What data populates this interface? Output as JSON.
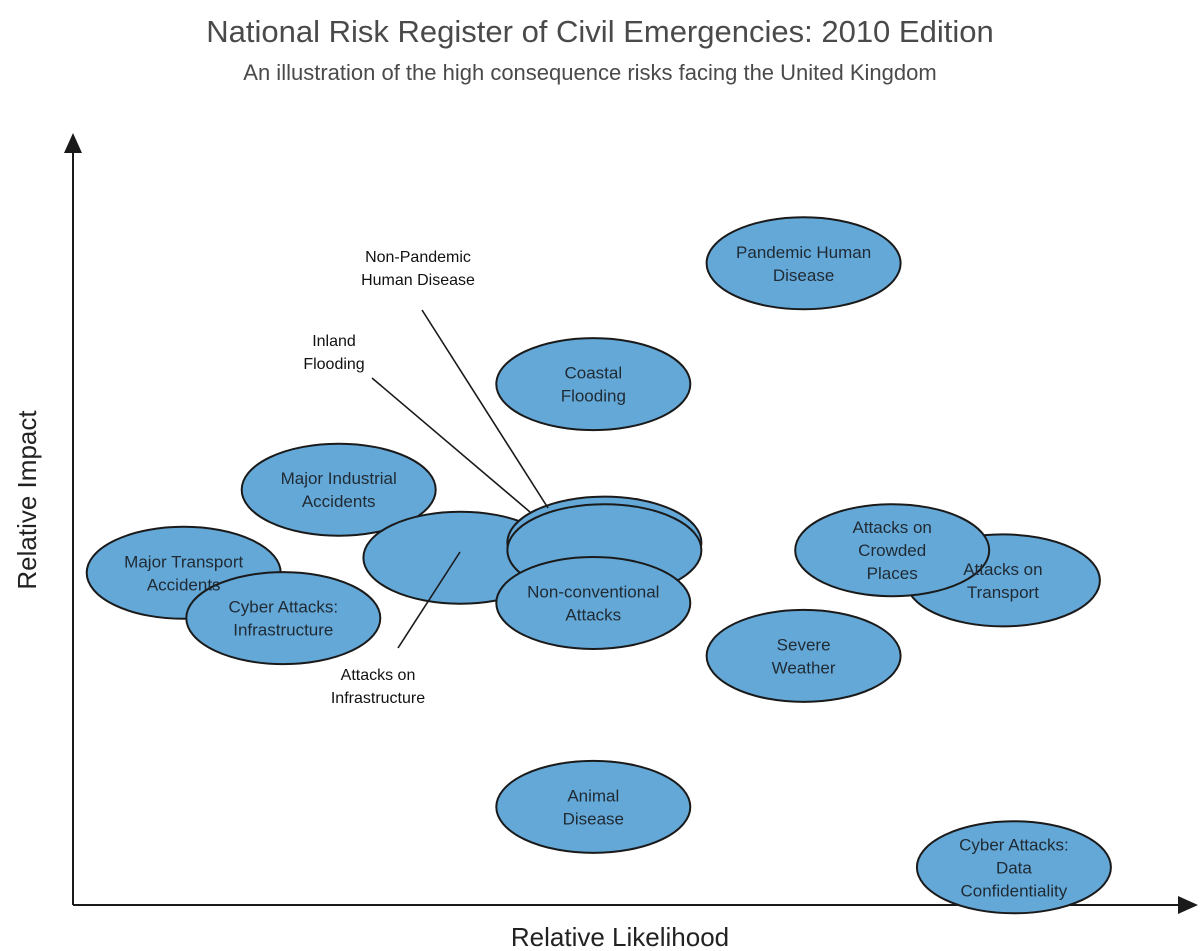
{
  "chart_data": {
    "type": "scatter",
    "title": "National Risk Register of Civil Emergencies: 2010 Edition",
    "subtitle": "An illustration of the high consequence risks facing the United Kingdom",
    "xlabel": "Relative Likelihood",
    "ylabel": "Relative Impact",
    "xlim": [
      0,
      100
    ],
    "ylim": [
      0,
      100
    ],
    "grid": false,
    "points": [
      {
        "label": "Pandemic Human Disease",
        "lines": [
          "Pandemic Human",
          "Disease"
        ],
        "x": 66,
        "y": 85
      },
      {
        "label": "Coastal Flooding",
        "lines": [
          "Coastal",
          "Flooding"
        ],
        "x": 47,
        "y": 69
      },
      {
        "label": "Major Industrial Accidents",
        "lines": [
          "Major Industrial",
          "Accidents"
        ],
        "x": 24,
        "y": 55
      },
      {
        "label": "Major Transport Accidents",
        "lines": [
          "Major Transport",
          "Accidents"
        ],
        "x": 10,
        "y": 44
      },
      {
        "label": "Cyber Attacks: Infrastructure",
        "lines": [
          "Cyber Attacks:",
          "Infrastructure"
        ],
        "x": 19,
        "y": 38
      },
      {
        "label": "Attacks on Infrastructure",
        "lines": [],
        "x": 35,
        "y": 46
      },
      {
        "label": "Inland Flooding",
        "lines": [],
        "x": 48,
        "y": 48
      },
      {
        "label": "Non-Pandemic Human Disease",
        "lines": [],
        "x": 48,
        "y": 47
      },
      {
        "label": "Non-conventional Attacks",
        "lines": [
          "Non-conventional",
          "Attacks"
        ],
        "x": 47,
        "y": 40
      },
      {
        "label": "Attacks on Transport",
        "lines": [
          "Attacks on",
          "Transport"
        ],
        "x": 84,
        "y": 43
      },
      {
        "label": "Attacks on Crowded Places",
        "lines": [
          "Attacks on",
          "Crowded",
          "Places"
        ],
        "x": 74,
        "y": 47
      },
      {
        "label": "Severe Weather",
        "lines": [
          "Severe",
          "Weather"
        ],
        "x": 66,
        "y": 33
      },
      {
        "label": "Animal Disease",
        "lines": [
          "Animal",
          "Disease"
        ],
        "x": 47,
        "y": 13
      },
      {
        "label": "Cyber Attacks: Data Confidentiality",
        "lines": [
          "Cyber Attacks:",
          "Data",
          "Confidentiality"
        ],
        "x": 85,
        "y": 5
      }
    ],
    "callouts": [
      {
        "label": "Non-Pandemic Human Disease",
        "lines": [
          "Non-Pandemic",
          "Human Disease"
        ]
      },
      {
        "label": "Inland Flooding",
        "lines": [
          "Inland",
          "Flooding"
        ]
      },
      {
        "label": "Attacks on Infrastructure",
        "lines": [
          "Attacks on",
          "Infrastructure"
        ]
      }
    ]
  },
  "colors": {
    "bubble_fill": "#64a8d8",
    "bubble_stroke": "#1a1a1a",
    "text": "#4a4a4a"
  }
}
